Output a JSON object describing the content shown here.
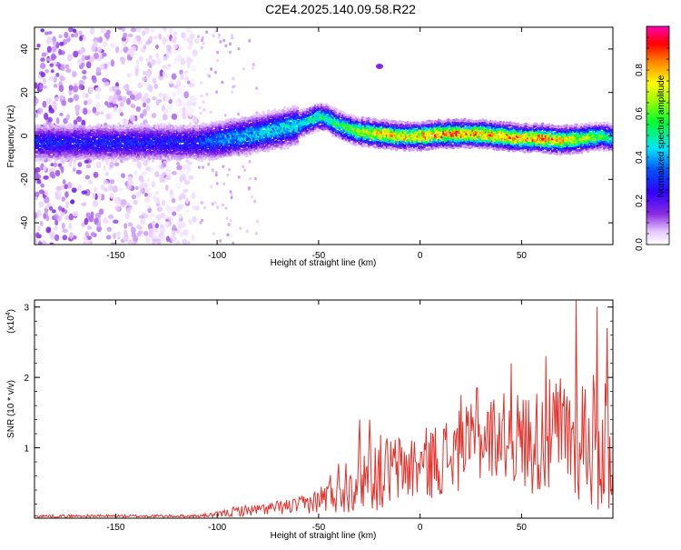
{
  "title": "C2E4.2025.140.09.58.R22",
  "chart_data": [
    {
      "type": "heatmap",
      "xlabel": "Height of straight line (km)",
      "ylabel": "Frequency (Hz)",
      "xlim": [
        -190,
        95
      ],
      "ylim": [
        -50,
        50
      ],
      "x_ticks": [
        -150,
        -100,
        -50,
        0,
        50
      ],
      "y_ticks": [
        -40,
        -20,
        0,
        20,
        40
      ],
      "colorbar": {
        "label": "Normalized spectral amplitude",
        "range": [
          0,
          1
        ],
        "ticks": [
          0.0,
          0.2,
          0.4,
          0.6,
          0.8
        ],
        "tick_labels": [
          "0.0",
          "0.2",
          "0.4",
          "0.6",
          "0.8"
        ]
      },
      "ridge": {
        "description_x": [
          -190,
          -150,
          -110,
          -100,
          -80,
          -60,
          -50,
          -45,
          -40,
          -30,
          -20,
          -10,
          0,
          10,
          20,
          30,
          40,
          50,
          60,
          70,
          80,
          90,
          95
        ],
        "frequency": [
          -3,
          -3,
          -3,
          -2,
          1,
          5,
          9,
          8,
          5,
          2,
          1,
          0,
          0,
          1,
          1,
          1,
          0,
          -1,
          -1,
          -2,
          -1,
          0,
          -1
        ],
        "peak_amplitude": [
          0.3,
          0.3,
          0.3,
          0.4,
          0.45,
          0.5,
          0.55,
          0.55,
          0.6,
          0.7,
          0.85,
          0.8,
          0.85,
          0.9,
          0.9,
          0.85,
          0.9,
          0.85,
          0.9,
          0.85,
          0.7,
          0.6,
          0.5
        ]
      },
      "noise_region_xlim": [
        -190,
        -110
      ],
      "isolated_blob": {
        "x": -20,
        "y": 32,
        "amplitude": 0.15
      }
    },
    {
      "type": "line",
      "xlabel": "Height of straight line (km)",
      "ylabel": "SNR (10 * v/v)",
      "y_multiplier_label": "(x10",
      "y_multiplier_exp": "4",
      "y_multiplier_close": ")",
      "xlim": [
        -190,
        95
      ],
      "ylim": [
        0,
        3.1
      ],
      "x_ticks": [
        -150,
        -100,
        -50,
        0,
        50
      ],
      "y_ticks": [
        1,
        2,
        3
      ],
      "line_color": "#e8302a",
      "envelope": {
        "x": [
          -190,
          -110,
          -100,
          -90,
          -80,
          -70,
          -60,
          -50,
          -40,
          -30,
          -20,
          -10,
          0,
          10,
          20,
          30,
          40,
          50,
          60,
          70,
          80,
          90,
          95
        ],
        "mean": [
          0.03,
          0.03,
          0.05,
          0.1,
          0.12,
          0.15,
          0.18,
          0.25,
          0.45,
          0.6,
          0.65,
          0.7,
          0.75,
          0.85,
          0.95,
          1.1,
          1.2,
          1.1,
          1.1,
          1.2,
          1.2,
          1.1,
          1.1
        ],
        "amplitude": [
          0.02,
          0.02,
          0.04,
          0.08,
          0.08,
          0.1,
          0.12,
          0.18,
          0.4,
          0.5,
          0.55,
          0.5,
          0.5,
          0.55,
          0.6,
          0.6,
          0.6,
          0.7,
          0.8,
          0.9,
          1.0,
          1.1,
          1.0
        ]
      },
      "notable_peaks": [
        {
          "x": -30,
          "y": 1.4
        },
        {
          "x": -25,
          "y": 1.4
        },
        {
          "x": 20,
          "y": 1.75
        },
        {
          "x": 28,
          "y": 1.85
        },
        {
          "x": 45,
          "y": 2.2
        },
        {
          "x": 62,
          "y": 2.3
        },
        {
          "x": 77,
          "y": 3.1
        },
        {
          "x": 87,
          "y": 3.0
        },
        {
          "x": 92,
          "y": 2.7
        }
      ]
    }
  ]
}
